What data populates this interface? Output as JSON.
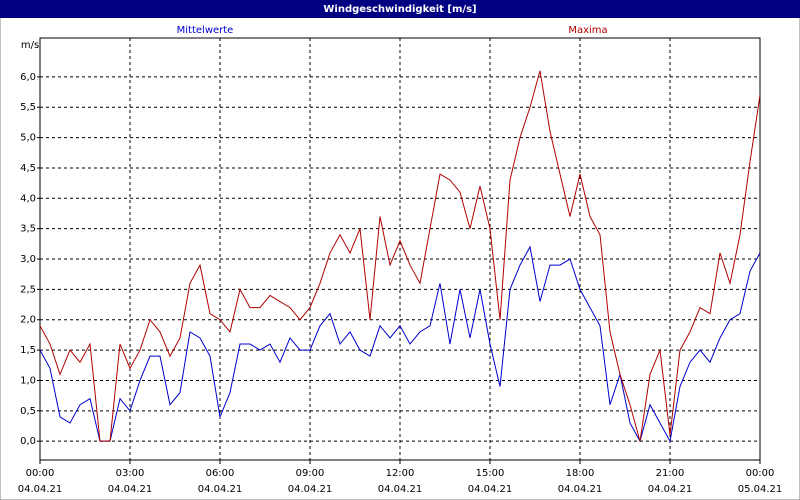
{
  "chart_data": {
    "type": "line",
    "title": "Windgeschwindigkeit [m/s]",
    "y_unit": "m/s",
    "x": [
      0,
      20,
      40,
      60,
      80,
      100,
      120,
      140,
      160,
      180,
      200,
      220,
      240,
      260,
      280,
      300,
      320,
      340,
      360,
      380,
      400,
      420,
      440,
      460,
      480,
      500,
      520,
      540,
      560,
      580,
      600,
      620,
      640,
      660,
      680,
      700,
      720,
      740,
      760,
      780,
      800,
      820,
      840,
      860,
      880,
      900,
      920,
      940,
      960,
      980,
      1000,
      1020,
      1040,
      1060,
      1080,
      1100,
      1120,
      1140,
      1160,
      1180,
      1200,
      1220,
      1240,
      1260,
      1280,
      1300,
      1320,
      1340,
      1360,
      1380,
      1400,
      1420,
      1440
    ],
    "xlim": [
      0,
      1440
    ],
    "xticks": [
      {
        "value": 0,
        "label": "00:00"
      },
      {
        "value": 180,
        "label": "03:00"
      },
      {
        "value": 360,
        "label": "06:00"
      },
      {
        "value": 540,
        "label": "09:00"
      },
      {
        "value": 720,
        "label": "12:00"
      },
      {
        "value": 900,
        "label": "15:00"
      },
      {
        "value": 1080,
        "label": "18:00"
      },
      {
        "value": 1260,
        "label": "21:00"
      },
      {
        "value": 1440,
        "label": "00:00"
      }
    ],
    "xtick_dates": [
      "04.04.21",
      "04.04.21",
      "04.04.21",
      "04.04.21",
      "04.04.21",
      "04.04.21",
      "04.04.21",
      "04.04.21",
      "05.04.21"
    ],
    "ylim": [
      -0.31,
      6.64
    ],
    "yticks": [
      {
        "value": 0,
        "label": "0,0"
      },
      {
        "value": 0.5,
        "label": "0,5"
      },
      {
        "value": 1,
        "label": "1,0"
      },
      {
        "value": 1.5,
        "label": "1,5"
      },
      {
        "value": 2,
        "label": "2,0"
      },
      {
        "value": 2.5,
        "label": "2,5"
      },
      {
        "value": 3,
        "label": "3,0"
      },
      {
        "value": 3.5,
        "label": "3,5"
      },
      {
        "value": 4,
        "label": "4,0"
      },
      {
        "value": 4.5,
        "label": "4,5"
      },
      {
        "value": 5,
        "label": "5,0"
      },
      {
        "value": 5.5,
        "label": "5,5"
      },
      {
        "value": 6,
        "label": "6,0"
      }
    ],
    "grid": true,
    "series": [
      {
        "name": "Mittelwerte",
        "color": "#0000cc",
        "values": [
          1.5,
          1.2,
          0.4,
          0.3,
          0.6,
          0.7,
          0.0,
          0.0,
          0.7,
          0.5,
          1.0,
          1.4,
          1.4,
          0.6,
          0.8,
          1.8,
          1.7,
          1.4,
          0.4,
          0.8,
          1.6,
          1.6,
          1.5,
          1.6,
          1.3,
          1.7,
          1.5,
          1.5,
          1.9,
          2.1,
          1.6,
          1.8,
          1.5,
          1.4,
          1.9,
          1.7,
          1.9,
          1.6,
          1.8,
          1.9,
          2.6,
          1.6,
          2.5,
          1.7,
          2.5,
          1.6,
          0.9,
          2.5,
          2.9,
          3.2,
          2.3,
          2.9,
          2.9,
          3.0,
          2.5,
          2.2,
          1.9,
          0.6,
          1.1,
          0.3,
          0.0,
          0.6,
          0.3,
          0.0,
          0.9,
          1.3,
          1.5,
          1.3,
          1.7,
          2.0,
          2.1,
          2.8,
          3.1
        ]
      },
      {
        "name": "Maxima",
        "color": "#b00000",
        "values": [
          1.9,
          1.6,
          1.1,
          1.5,
          1.3,
          1.6,
          0.0,
          0.0,
          1.6,
          1.2,
          1.5,
          2.0,
          1.8,
          1.4,
          1.7,
          2.6,
          2.9,
          2.1,
          2.0,
          1.8,
          2.5,
          2.2,
          2.2,
          2.4,
          2.3,
          2.2,
          2.0,
          2.2,
          2.6,
          3.1,
          3.4,
          3.1,
          3.5,
          2.0,
          3.7,
          2.9,
          3.3,
          2.9,
          2.6,
          3.5,
          4.4,
          4.3,
          4.1,
          3.5,
          4.2,
          3.5,
          2.0,
          4.3,
          5.0,
          5.5,
          6.1,
          5.1,
          4.4,
          3.7,
          4.4,
          3.7,
          3.4,
          1.8,
          1.1,
          0.6,
          0.0,
          1.1,
          1.5,
          0.1,
          1.5,
          1.8,
          2.2,
          2.1,
          3.1,
          2.6,
          3.4,
          4.6,
          5.7
        ]
      }
    ]
  }
}
